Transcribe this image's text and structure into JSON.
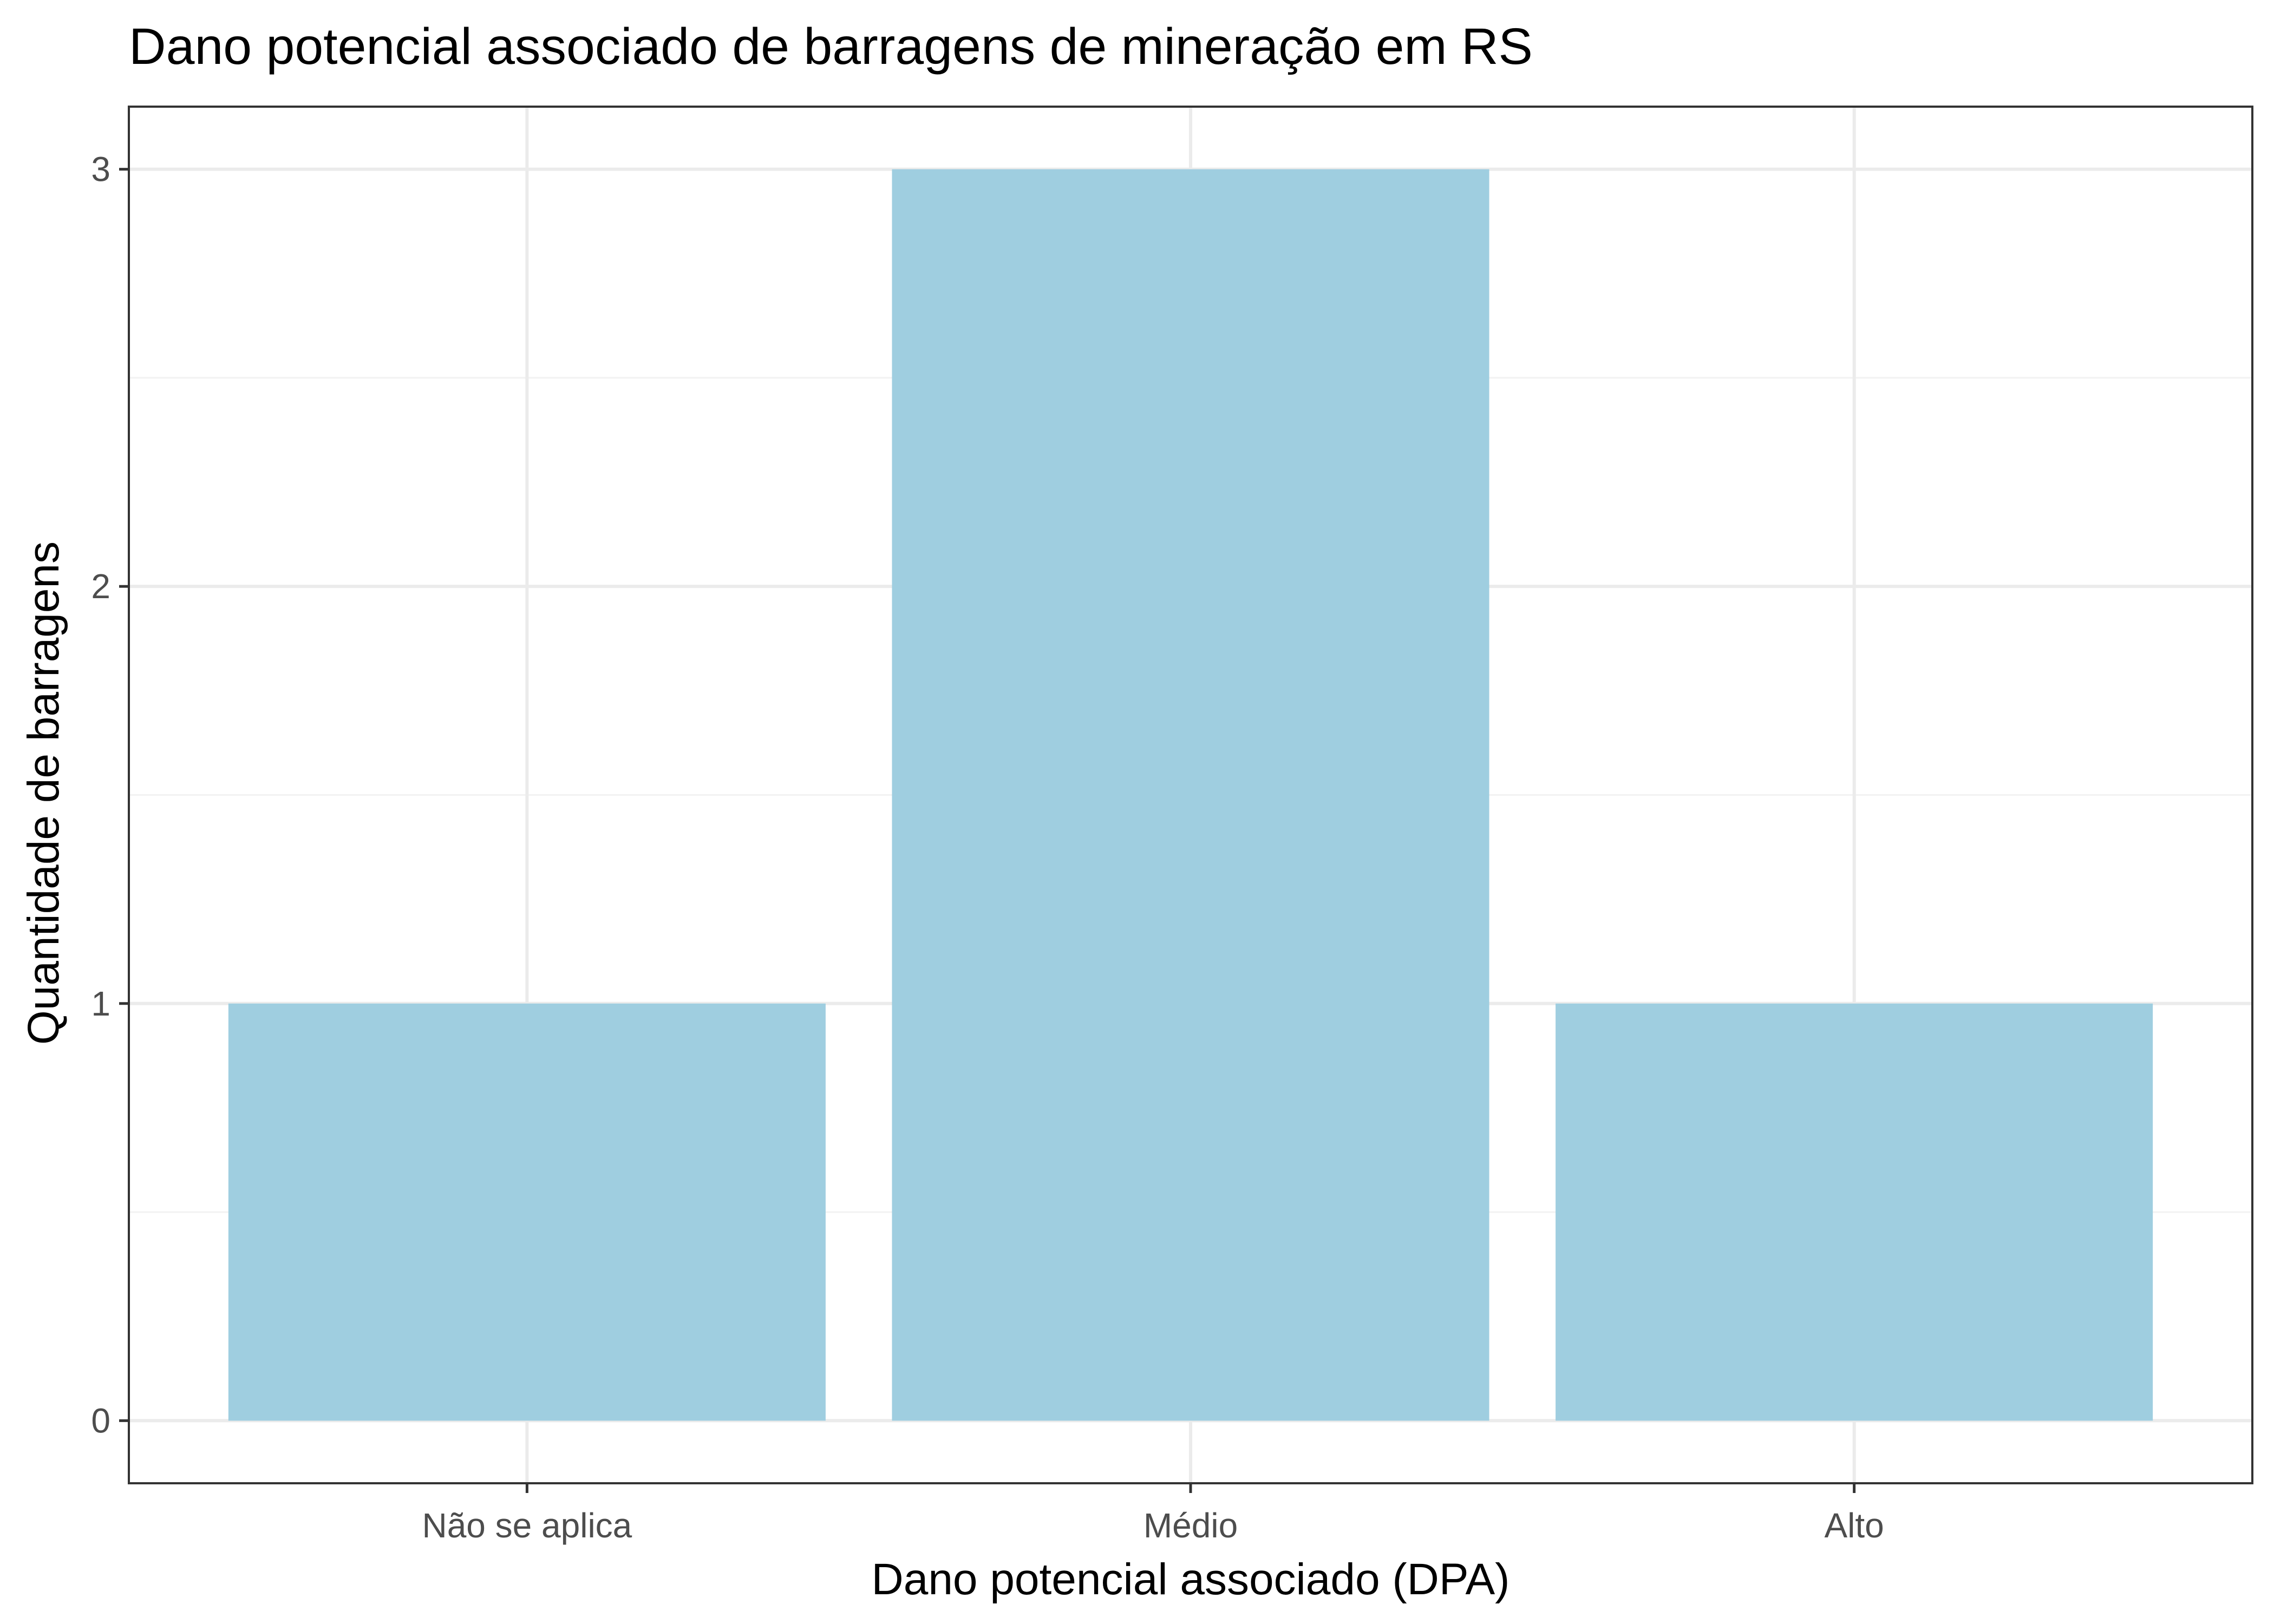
{
  "chart_data": {
    "type": "bar",
    "title": "Dano potencial associado de barragens de mineração em RS",
    "xlabel": "Dano potencial associado (DPA)",
    "ylabel": "Quantidade de barragens",
    "categories": [
      "Não se aplica",
      "Médio",
      "Alto"
    ],
    "values": [
      1,
      3,
      1
    ],
    "ylim": [
      -0.15,
      3.15
    ],
    "yticks": [
      0,
      1,
      2,
      3
    ],
    "grid": true,
    "legend": "none",
    "colors": {
      "bar": "#9FCEE0",
      "grid_major": "#EBEBEB",
      "grid_minor": "#F2F2F2",
      "panel_border": "#333333",
      "tick": "#333333"
    }
  }
}
